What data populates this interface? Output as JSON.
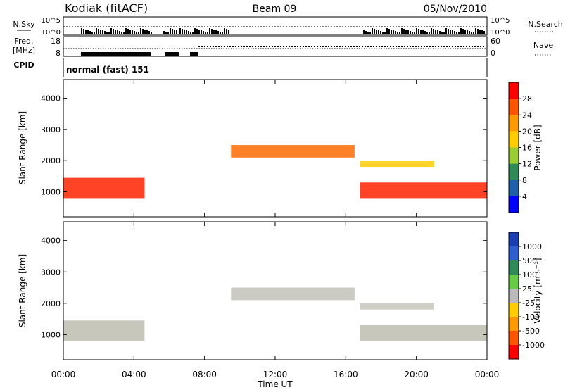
{
  "header": {
    "radar": "Kodiak (fitACF)",
    "beam": "Beam 09",
    "date": "05/Nov/2010"
  },
  "strips": {
    "nsky": {
      "label": "N.Sky",
      "ticks": [
        "10^5",
        "10^0"
      ]
    },
    "nsearch": {
      "label": "N.Search",
      "ticks": [
        "10^5",
        "10^0"
      ]
    },
    "freq": {
      "label_top": "Freq.",
      "label_bottom": "[MHz]",
      "ticks": [
        "18",
        "8"
      ]
    },
    "nave": {
      "label": "Nave",
      "ticks": [
        "60",
        "0"
      ]
    },
    "cpid": {
      "label": "CPID",
      "value": "normal (fast) 151"
    }
  },
  "chart_data": [
    {
      "type": "heatmap",
      "name": "power",
      "ylabel": "Slant Range [km]",
      "ylim": [
        200,
        4600
      ],
      "yticks": [
        1000,
        2000,
        3000,
        4000
      ],
      "xlim": [
        0,
        24
      ],
      "xticks": [
        0,
        4,
        8,
        12,
        16,
        20,
        24
      ],
      "xticklabels": [
        "00:00",
        "04:00",
        "08:00",
        "12:00",
        "16:00",
        "20:00",
        "00:00"
      ],
      "colorbar": {
        "label": "Power [dB]",
        "ticks": [
          "28",
          "24",
          "20",
          "16",
          "12",
          "8",
          "4"
        ],
        "colors": [
          "#ff0000",
          "#ff5500",
          "#ff9900",
          "#ffcc00",
          "#9acd32",
          "#2e8b57",
          "#1f5faa",
          "#0000ff"
        ]
      },
      "bands": [
        {
          "t0": 0.0,
          "t1": 4.6,
          "r0": 800,
          "r1": 1450,
          "color": "#ff2200"
        },
        {
          "t0": 9.5,
          "t1": 16.5,
          "r0": 2100,
          "r1": 2500,
          "color": "#ff6a00"
        },
        {
          "t0": 16.8,
          "t1": 24.0,
          "r0": 800,
          "r1": 1300,
          "color": "#ff2200"
        },
        {
          "t0": 16.8,
          "t1": 21.0,
          "r0": 1800,
          "r1": 2000,
          "color": "#ffcc00"
        }
      ]
    },
    {
      "type": "heatmap",
      "name": "velocity",
      "ylabel": "Slant Range [km]",
      "ylim": [
        200,
        4600
      ],
      "yticks": [
        1000,
        2000,
        3000,
        4000
      ],
      "xlim": [
        0,
        24
      ],
      "xticks": [
        0,
        4,
        8,
        12,
        16,
        20,
        24
      ],
      "xticklabels": [
        "00:00",
        "04:00",
        "08:00",
        "12:00",
        "16:00",
        "20:00",
        "00:00"
      ],
      "xlabel": "Time UT",
      "colorbar": {
        "label": "Velocity [m s⁻¹]",
        "ticks": [
          "1000",
          "500",
          "100",
          "25",
          "-25",
          "-100",
          "-500",
          "-1000"
        ],
        "colors": [
          "#1a3fb4",
          "#2e5fd0",
          "#2e8b57",
          "#66cc44",
          "#bbbbbb",
          "#ffcc00",
          "#ff9900",
          "#ff5500",
          "#ff0000"
        ]
      },
      "bands": [
        {
          "t0": 0.0,
          "t1": 4.6,
          "r0": 800,
          "r1": 1450,
          "color": "#bdbdb0"
        },
        {
          "t0": 9.5,
          "t1": 16.5,
          "r0": 2100,
          "r1": 2500,
          "color": "#c2c2b8"
        },
        {
          "t0": 16.8,
          "t1": 24.0,
          "r0": 800,
          "r1": 1300,
          "color": "#bdbdb0"
        },
        {
          "t0": 16.8,
          "t1": 21.0,
          "r0": 1800,
          "r1": 2000,
          "color": "#c8c8c0"
        }
      ]
    }
  ]
}
